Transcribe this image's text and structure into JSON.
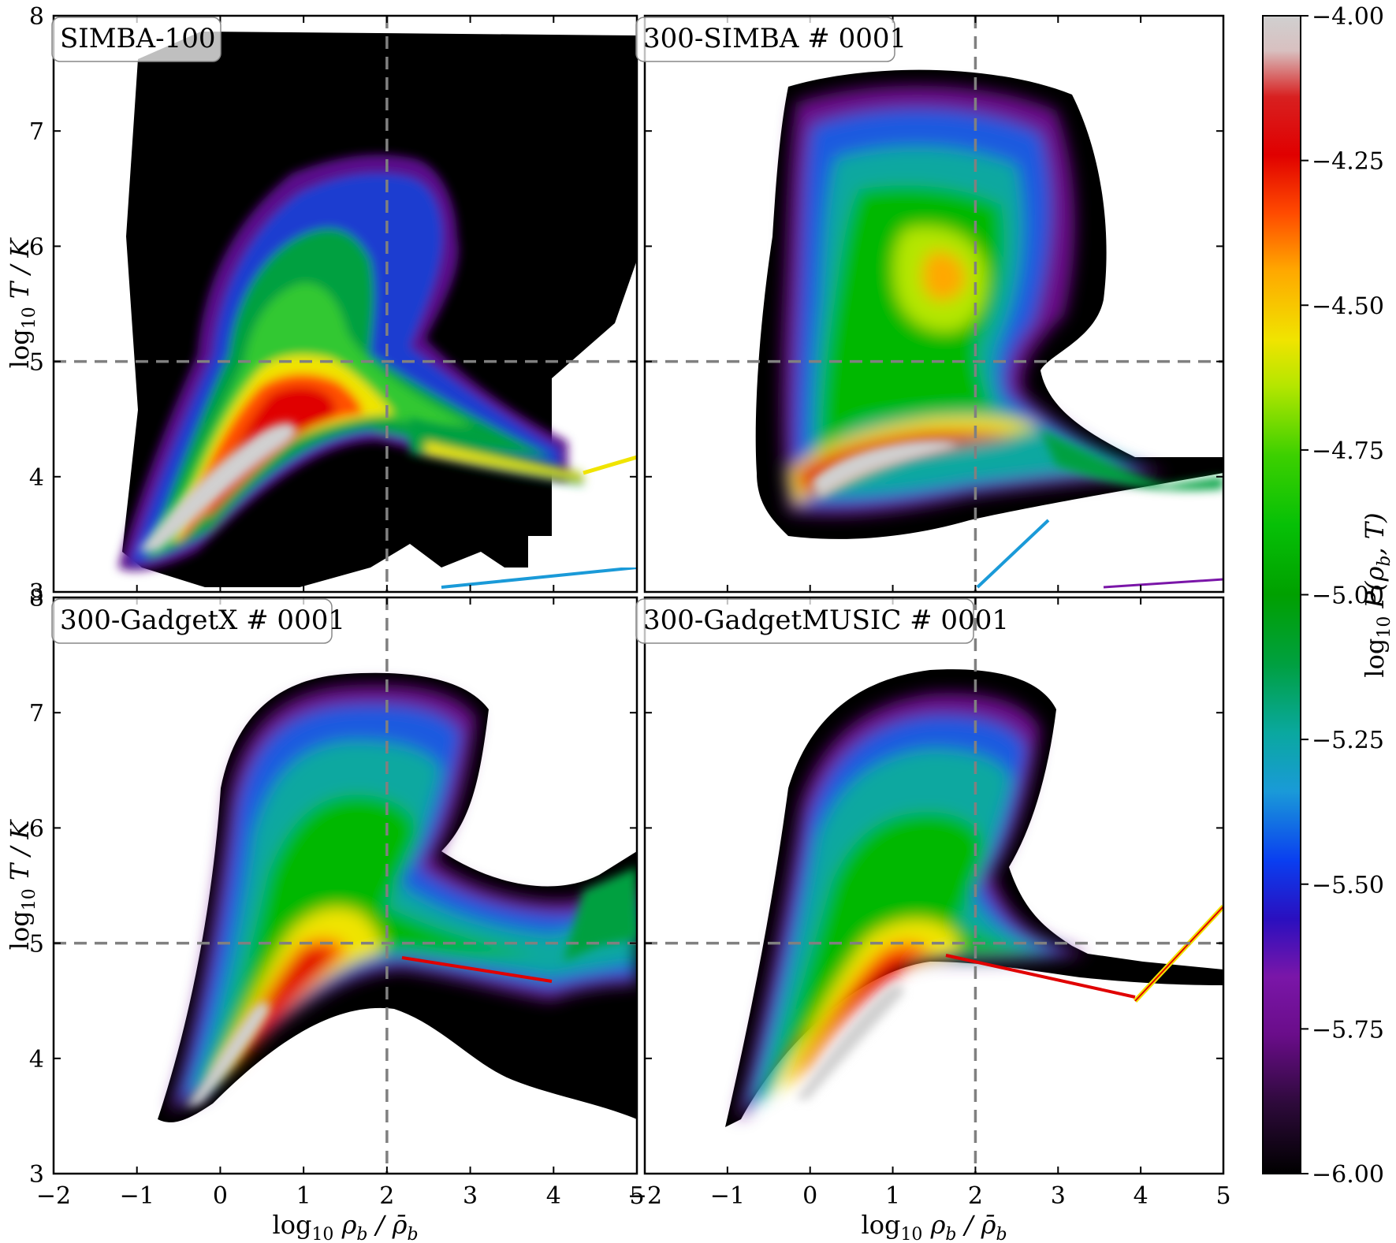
{
  "figure": {
    "type": "heatmap",
    "colormap": "nipy_spectral-like (black → purple → blue → green → yellow → red → light grey)",
    "reference_lines": {
      "x": 2,
      "y": 5,
      "style": "grey dashed"
    }
  },
  "colorbar": {
    "label_prefix": "log",
    "label_sub": "10",
    "label_body": " P(ρ",
    "label_sub2": "b",
    "label_end": ", T)",
    "range": [
      -6.0,
      -4.0
    ],
    "ticks": [
      "−4.00",
      "−4.25",
      "−4.50",
      "−4.75",
      "−5.00",
      "−5.25",
      "−5.50",
      "−5.75",
      "−6.00"
    ],
    "tick_values": [
      -4.0,
      -4.25,
      -4.5,
      -4.75,
      -5.0,
      -5.25,
      -5.5,
      -5.75,
      -6.0
    ],
    "colors": [
      "#000000",
      "#2d0a3a",
      "#6a0d8a",
      "#7a16a8",
      "#2a0fbf",
      "#0a3ef0",
      "#1a9ad8",
      "#0aa8a0",
      "#00a040",
      "#06b806",
      "#3cd000",
      "#b4e600",
      "#f0e400",
      "#ffa800",
      "#ff4a00",
      "#e00000",
      "#d82020",
      "#d8c0c0",
      "#d0d0d0"
    ]
  },
  "chart_data": [
    {
      "type": "heatmap",
      "title": "SIMBA-100",
      "xlim": [
        -2,
        5
      ],
      "ylim": [
        3,
        8
      ],
      "xticks": [
        "−2",
        "−1",
        "0",
        "1",
        "2",
        "3",
        "4",
        "5"
      ],
      "yticks": [
        "3",
        "4",
        "5",
        "6",
        "7",
        "8"
      ],
      "ylabel": "log10 T / K",
      "background": "black (low-density floor fills most of the panel)",
      "peak_region": {
        "x": [
          0.2,
          0.8
        ],
        "y": [
          4.2,
          4.5
        ]
      },
      "high_density_ridge": [
        [
          -1.2,
          3.2
        ],
        [
          0,
          3.9
        ],
        [
          0.8,
          4.5
        ],
        [
          1.2,
          4.7
        ],
        [
          2,
          4.5
        ],
        [
          3,
          4.2
        ],
        [
          4.4,
          4.1
        ]
      ],
      "hot_phase_extent": {
        "x": [
          -0.5,
          2.7
        ],
        "y": [
          5.0,
          6.8
        ]
      }
    },
    {
      "type": "heatmap",
      "title": "300-SIMBA # 0001",
      "xlim": [
        -2,
        5
      ],
      "ylim": [
        3,
        8
      ],
      "xticks": [
        "−2",
        "−1",
        "0",
        "1",
        "2",
        "3",
        "4",
        "5"
      ],
      "yticks": [
        "3",
        "4",
        "5",
        "6",
        "7",
        "8"
      ],
      "peak_region": {
        "x": [
          -0.5,
          0.8
        ],
        "y": [
          4.2,
          4.9
        ]
      },
      "high_density_ridge": [
        [
          -0.6,
          4.2
        ],
        [
          0,
          4.7
        ],
        [
          1,
          4.85
        ],
        [
          2,
          4.7
        ],
        [
          3,
          4.2
        ],
        [
          4,
          4.0
        ],
        [
          5,
          4.3
        ]
      ],
      "hot_phase_extent": {
        "x": [
          -0.5,
          2.0
        ],
        "y": [
          5.0,
          7.3
        ]
      },
      "hot_phase_peak": {
        "x": 1.2,
        "y": 6.1
      }
    },
    {
      "type": "heatmap",
      "title": "300-GadgetX # 0001",
      "xlim": [
        -2,
        5
      ],
      "ylim": [
        3,
        8
      ],
      "xticks": [
        "−2",
        "−1",
        "0",
        "1",
        "2",
        "3",
        "4",
        "5"
      ],
      "yticks": [
        "3",
        "4",
        "5",
        "6",
        "7",
        "8"
      ],
      "xlabel": "log10 ρb / ρ̄b",
      "ylabel": "log10 T / K",
      "peak_region": {
        "x": [
          0.3,
          1.0
        ],
        "y": [
          4.3,
          5.0
        ]
      },
      "high_density_ridge": [
        [
          -1.1,
          3.4
        ],
        [
          0,
          4.1
        ],
        [
          1,
          4.9
        ],
        [
          2,
          4.7
        ],
        [
          3,
          4.35
        ],
        [
          4.1,
          4.1
        ],
        [
          5,
          4.9
        ]
      ],
      "hot_phase_extent": {
        "x": [
          -0.2,
          2.8
        ],
        "y": [
          5.0,
          7.3
        ]
      }
    },
    {
      "type": "heatmap",
      "title": "300-GadgetMUSIC # 0001",
      "xlim": [
        -2,
        5
      ],
      "ylim": [
        3,
        8
      ],
      "xticks": [
        "−2",
        "−1",
        "0",
        "1",
        "2",
        "3",
        "4",
        "5"
      ],
      "yticks": [
        "3",
        "4",
        "5",
        "6",
        "7",
        "8"
      ],
      "xlabel": "log10 ρb / ρ̄b",
      "peak_region": {
        "x": [
          0.5,
          1.0
        ],
        "y": [
          4.3,
          4.6
        ]
      },
      "high_density_ridge": [
        [
          -1.0,
          3.4
        ],
        [
          0,
          4.1
        ],
        [
          1,
          4.6
        ],
        [
          2,
          4.45
        ],
        [
          3,
          4.3
        ],
        [
          4,
          4.1
        ],
        [
          5,
          5.0
        ]
      ],
      "hot_phase_extent": {
        "x": [
          -0.3,
          2.8
        ],
        "y": [
          5.0,
          7.4
        ]
      }
    }
  ],
  "labels": {
    "y_prefix": "log",
    "y_sub": "10",
    "y_body": " T / K",
    "x_prefix": "log",
    "x_sub": "10",
    "x_body": " ρ",
    "x_sub2": "b",
    "x_slash": " / ρ̄",
    "x_sub3": "b"
  }
}
